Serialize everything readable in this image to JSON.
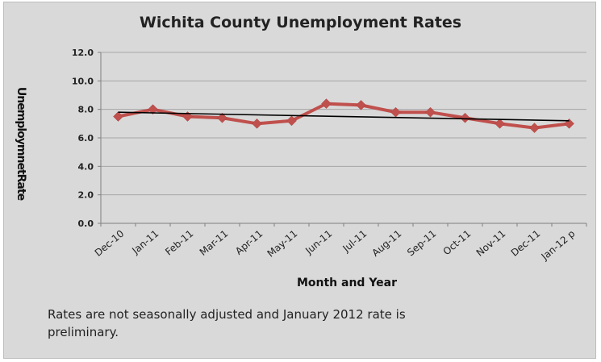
{
  "chart_data": {
    "type": "line",
    "title": "Wichita County Unemployment Rates",
    "xlabel": "Month and Year",
    "ylabel": "UnemploymnetRate",
    "categories": [
      "Dec-10",
      "Jan-11",
      "Feb-11",
      "Mar-11",
      "Apr-11",
      "May-11",
      "Jun-11",
      "Jul-11",
      "Aug-11",
      "Sep-11",
      "Oct-11",
      "Nov-11",
      "Dec-11",
      "Jan-12 p"
    ],
    "series": [
      {
        "values": [
          7.5,
          8.0,
          7.5,
          7.4,
          7.0,
          7.2,
          8.4,
          8.3,
          7.8,
          7.8,
          7.4,
          7.0,
          6.7,
          7.0
        ],
        "color": "#c0504d"
      }
    ],
    "trendline": {
      "start": 7.8,
      "end": 7.2,
      "color": "#000000"
    },
    "ylim": [
      0,
      12
    ],
    "yticks": [
      "0.0",
      "2.0",
      "4.0",
      "6.0",
      "8.0",
      "10.0",
      "12.0"
    ],
    "grid": true,
    "plot_background": "#d9d9d9",
    "footnote": "Rates are not seasonally adjusted and January 2012 rate is preliminary."
  }
}
